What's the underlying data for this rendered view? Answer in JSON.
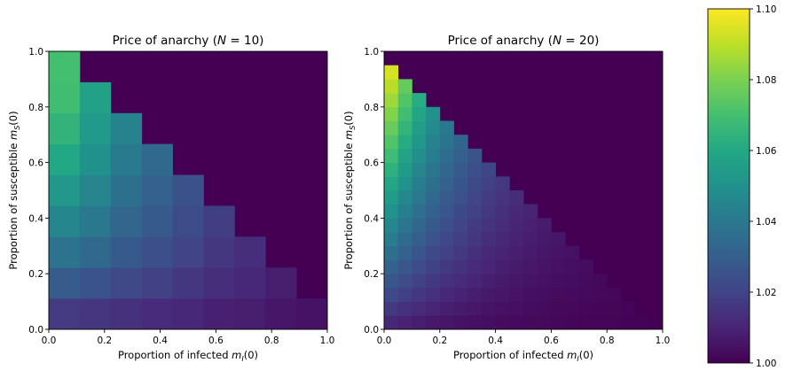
{
  "chart_data": {
    "colorbar": {
      "min": 1.0,
      "max": 1.1,
      "ticks": [
        "1.00",
        "1.02",
        "1.04",
        "1.06",
        "1.08",
        "1.10"
      ],
      "colormap": "viridis"
    },
    "panels": [
      {
        "type": "heatmap",
        "title_prefix": "Price of anarchy (",
        "title_var": "N",
        "title_eq": " = 10)",
        "xlabel_prefix": "Proportion of infected ",
        "xlabel_var": "m",
        "xlabel_sub": "I",
        "xlabel_suffix": "(0)",
        "ylabel_prefix": "Proportion of susceptible ",
        "ylabel_var": "m",
        "ylabel_sub": "S",
        "ylabel_suffix": "(0)",
        "xlim": [
          0,
          1
        ],
        "ylim": [
          0,
          1
        ],
        "xticks": [
          "0.0",
          "0.2",
          "0.4",
          "0.6",
          "0.8",
          "1.0"
        ],
        "yticks": [
          "0.0",
          "0.2",
          "0.4",
          "0.6",
          "0.8",
          "1.0"
        ],
        "grid_n": 9,
        "background_value": 1.0,
        "rows": [
          [
            1.017,
            1.016,
            1.014,
            1.012,
            1.011,
            1.009,
            1.008,
            1.006,
            1.005
          ],
          [
            1.029,
            1.026,
            1.022,
            1.019,
            1.016,
            1.013,
            1.011,
            1.008
          ],
          [
            1.038,
            1.034,
            1.028,
            1.024,
            1.02,
            1.016,
            1.013
          ],
          [
            1.046,
            1.04,
            1.033,
            1.028,
            1.023,
            1.018
          ],
          [
            1.053,
            1.045,
            1.037,
            1.031,
            1.025
          ],
          [
            1.06,
            1.05,
            1.041,
            1.034
          ],
          [
            1.065,
            1.054,
            1.044
          ],
          [
            1.069,
            1.057
          ],
          [
            1.07
          ]
        ]
      },
      {
        "type": "heatmap",
        "title_prefix": "Price of anarchy (",
        "title_var": "N",
        "title_eq": " = 20)",
        "xlabel_prefix": "Proportion of infected ",
        "xlabel_var": "m",
        "xlabel_sub": "I",
        "xlabel_suffix": "(0)",
        "ylabel_prefix": "Proportion of susceptible ",
        "ylabel_var": "m",
        "ylabel_sub": "S",
        "ylabel_suffix": "(0)",
        "xlim": [
          0,
          1
        ],
        "ylim": [
          0,
          1
        ],
        "xticks": [
          "0.0",
          "0.2",
          "0.4",
          "0.6",
          "0.8",
          "1.0"
        ],
        "yticks": [
          "0.0",
          "0.2",
          "0.4",
          "0.6",
          "0.8",
          "1.0"
        ],
        "grid_n": 20,
        "background_value": 1.0,
        "first_col_peak": 1.098,
        "first_col_base": 1.005,
        "decay_per_col": 0.12
      }
    ]
  }
}
